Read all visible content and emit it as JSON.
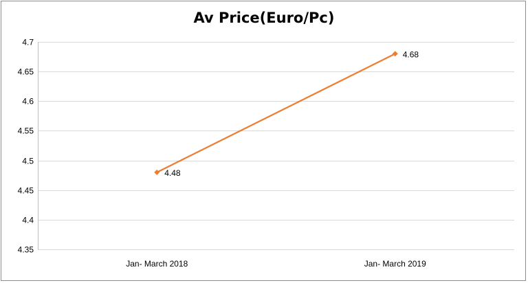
{
  "chart_data": {
    "type": "line",
    "title": "Av Price(Euro/Pc)",
    "xlabel": "",
    "ylabel": "",
    "categories": [
      "Jan- March 2018",
      "Jan- March 2019"
    ],
    "series": [
      {
        "values": [
          4.48,
          4.68
        ],
        "color": "#ed7d31",
        "marker": "diamond",
        "data_labels": [
          "4.48",
          "4.68"
        ]
      }
    ],
    "ylim": [
      4.35,
      4.7
    ],
    "yticks": [
      4.35,
      4.4,
      4.45,
      4.5,
      4.55,
      4.6,
      4.65,
      4.7
    ],
    "ytick_labels": [
      "4.35",
      "4.4",
      "4.45",
      "4.5",
      "4.55",
      "4.6",
      "4.65",
      "4.7"
    ],
    "grid": true,
    "legend": "none",
    "colors": {
      "gridline": "#d9d9d9",
      "axis": "#bfbfbf",
      "frame": "#8c8c8c"
    }
  }
}
